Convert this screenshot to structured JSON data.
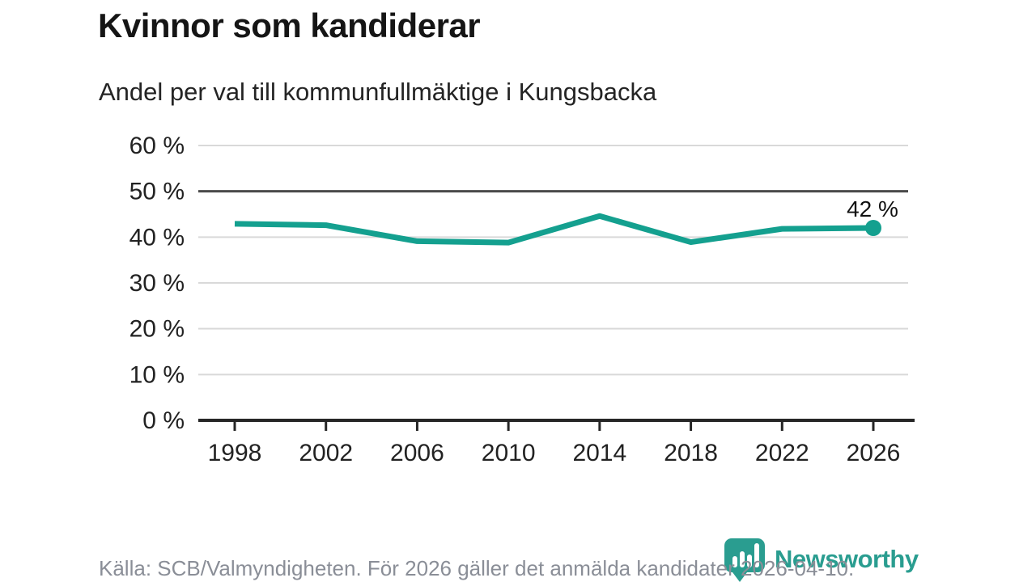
{
  "header": {
    "title": "Kvinnor som kandiderar",
    "subtitle": "Andel per val till kommunfullmäktige i Kungsbacka"
  },
  "chart_data": {
    "type": "line",
    "title": "Kvinnor som kandiderar",
    "subtitle": "Andel per val till kommunfullmäktige i Kungsbacka",
    "categories": [
      1998,
      2002,
      2006,
      2010,
      2014,
      2018,
      2022,
      2026
    ],
    "values": [
      42.9,
      42.6,
      39.1,
      38.8,
      44.6,
      38.9,
      41.8,
      42
    ],
    "unit": "%",
    "xlabel": "",
    "ylabel": "",
    "ylim": [
      0,
      60
    ],
    "y_tick_step": 10,
    "y_tick_labels": [
      "0 %",
      "10 %",
      "20 %",
      "30 %",
      "40 %",
      "50 %",
      "60 %"
    ],
    "x_tick_labels": [
      "1998",
      "2002",
      "2006",
      "2010",
      "2014",
      "2018",
      "2022",
      "2026"
    ],
    "reference_line_y": 50,
    "grid": true,
    "legend_position": "none",
    "last_value_label": "42 %",
    "line_color": "#14a08f"
  },
  "footer": {
    "source_text": "Källa: SCB/Valmyndigheten. För 2026 gäller det anmälda kandidater 2026-04-10.",
    "brand_name": "Newsworthy"
  },
  "colors": {
    "accent_teal": "#14a08f",
    "grid_line": "#d9d9d9",
    "reference_line": "#4a4a4a",
    "axis_line": "#262626",
    "tick_label": "#222222",
    "annotation": "#111111",
    "footer_text": "#8a8e97",
    "brand_teal": "#2a9d90"
  }
}
